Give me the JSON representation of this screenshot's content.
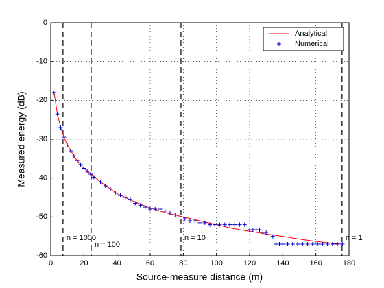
{
  "chart_data": {
    "type": "line",
    "xlabel": "Source-measure distance (m)",
    "ylabel": "Measured energy (dB)",
    "xlim": [
      0,
      180
    ],
    "ylim": [
      -60,
      0
    ],
    "xticks": [
      0,
      20,
      40,
      60,
      80,
      100,
      120,
      140,
      160,
      180
    ],
    "yticks": [
      -60,
      -50,
      -40,
      -30,
      -20,
      -10,
      0
    ],
    "grid": true,
    "legend": "upper right",
    "vlines": [
      {
        "x": 7.4,
        "label": "n = 1000"
      },
      {
        "x": 24.4,
        "label": "n = 100"
      },
      {
        "x": 78.6,
        "label": "n = 10"
      },
      {
        "x": 175.8,
        "label": "n = 1"
      }
    ],
    "series": [
      {
        "name": "Analytical",
        "color": "#ff0000",
        "marker": "line",
        "x": [
          2,
          4,
          6,
          8,
          10,
          15,
          20,
          25,
          30,
          40,
          50,
          60,
          70,
          80,
          90,
          100,
          110,
          120,
          130,
          140,
          150,
          160,
          170,
          176
        ],
        "values": [
          -18,
          -23.5,
          -27,
          -29.5,
          -31.5,
          -35,
          -37.5,
          -39.2,
          -41,
          -44,
          -46,
          -47.7,
          -49,
          -50,
          -51,
          -52,
          -53,
          -53.7,
          -54.4,
          -55,
          -55.7,
          -56.3,
          -56.8,
          -57
        ]
      },
      {
        "name": "Numerical",
        "color": "#0000cc",
        "marker": "plus",
        "x": [
          2,
          4,
          6,
          8,
          10,
          12,
          14,
          16,
          18,
          20,
          22,
          24,
          26,
          28,
          30,
          33,
          36,
          39,
          42,
          45,
          48,
          51,
          54,
          57,
          60,
          63,
          66,
          69,
          72,
          75,
          78,
          81,
          84,
          87,
          90,
          93,
          96,
          99,
          102,
          105,
          108,
          111,
          114,
          117,
          120,
          122,
          124,
          126,
          128,
          130,
          134,
          136,
          138,
          140,
          143,
          146,
          149,
          152,
          155,
          158,
          161,
          164,
          167,
          170,
          173,
          176
        ],
        "values": [
          -18,
          -23.5,
          -27,
          -29.5,
          -31.5,
          -33,
          -34.3,
          -35.5,
          -36.5,
          -37.5,
          -38.3,
          -39,
          -39.8,
          -40.5,
          -41,
          -42,
          -42.8,
          -43.8,
          -44.5,
          -45,
          -45.5,
          -46.5,
          -47,
          -47.5,
          -48,
          -48,
          -48,
          -48.5,
          -49,
          -49.5,
          -50,
          -50.5,
          -51,
          -51,
          -51.5,
          -51.5,
          -52,
          -52,
          -52,
          -52,
          -52,
          -52,
          -52,
          -52,
          -53.3,
          -53.3,
          -53.3,
          -53.3,
          -54,
          -54,
          -55,
          -57,
          -57,
          -57,
          -57,
          -57,
          -57,
          -57,
          -57,
          -57,
          -57,
          -57,
          -57,
          -57,
          -57,
          -57
        ]
      }
    ]
  }
}
